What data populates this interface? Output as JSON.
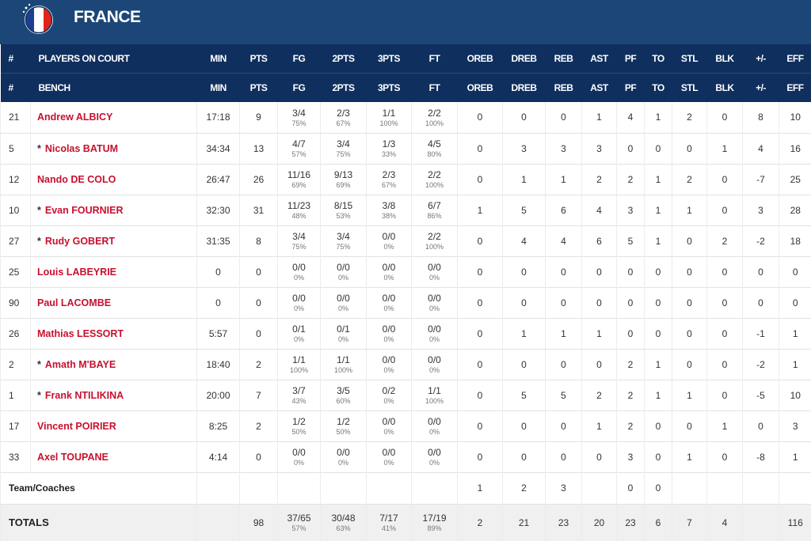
{
  "header": {
    "title": "FRANCE"
  },
  "table": {
    "columns_on_court": [
      "#",
      "PLAYERS ON COURT",
      "MIN",
      "PTS",
      "FG",
      "2PTS",
      "3PTS",
      "FT",
      "OREB",
      "DREB",
      "REB",
      "AST",
      "PF",
      "TO",
      "STL",
      "BLK",
      "+/-",
      "EFF"
    ],
    "columns_bench": [
      "#",
      "BENCH",
      "MIN",
      "PTS",
      "FG",
      "2PTS",
      "3PTS",
      "FT",
      "OREB",
      "DREB",
      "REB",
      "AST",
      "PF",
      "TO",
      "STL",
      "BLK",
      "+/-",
      "EFF"
    ],
    "rows": [
      {
        "number": "21",
        "name": "Andrew ALBICY",
        "stats": [
          "17:18",
          "9",
          [
            "3/4",
            "75%"
          ],
          [
            "2/3",
            "67%"
          ],
          [
            "1/1",
            "100%"
          ],
          [
            "2/2",
            "100%"
          ],
          "0",
          "0",
          "0",
          "1",
          "4",
          "1",
          "2",
          "0",
          "8",
          "10"
        ]
      },
      {
        "number": "5",
        "marker": "*",
        "name": "Nicolas BATUM",
        "stats": [
          "34:34",
          "13",
          [
            "4/7",
            "57%"
          ],
          [
            "3/4",
            "75%"
          ],
          [
            "1/3",
            "33%"
          ],
          [
            "4/5",
            "80%"
          ],
          "0",
          "3",
          "3",
          "3",
          "0",
          "0",
          "0",
          "1",
          "4",
          "16"
        ]
      },
      {
        "number": "12",
        "name": "Nando DE COLO",
        "stats": [
          "26:47",
          "26",
          [
            "11/16",
            "69%"
          ],
          [
            "9/13",
            "69%"
          ],
          [
            "2/3",
            "67%"
          ],
          [
            "2/2",
            "100%"
          ],
          "0",
          "1",
          "1",
          "2",
          "2",
          "1",
          "2",
          "0",
          "-7",
          "25"
        ]
      },
      {
        "number": "10",
        "marker": "*",
        "name": "Evan FOURNIER",
        "stats": [
          "32:30",
          "31",
          [
            "11/23",
            "48%"
          ],
          [
            "8/15",
            "53%"
          ],
          [
            "3/8",
            "38%"
          ],
          [
            "6/7",
            "86%"
          ],
          "1",
          "5",
          "6",
          "4",
          "3",
          "1",
          "1",
          "0",
          "3",
          "28"
        ]
      },
      {
        "number": "27",
        "marker": "*",
        "name": "Rudy GOBERT",
        "stats": [
          "31:35",
          "8",
          [
            "3/4",
            "75%"
          ],
          [
            "3/4",
            "75%"
          ],
          [
            "0/0",
            "0%"
          ],
          [
            "2/2",
            "100%"
          ],
          "0",
          "4",
          "4",
          "6",
          "5",
          "1",
          "0",
          "2",
          "-2",
          "18"
        ]
      },
      {
        "number": "25",
        "name": "Louis LABEYRIE",
        "stats": [
          "0",
          "0",
          [
            "0/0",
            "0%"
          ],
          [
            "0/0",
            "0%"
          ],
          [
            "0/0",
            "0%"
          ],
          [
            "0/0",
            "0%"
          ],
          "0",
          "0",
          "0",
          "0",
          "0",
          "0",
          "0",
          "0",
          "0",
          "0"
        ]
      },
      {
        "number": "90",
        "name": "Paul LACOMBE",
        "stats": [
          "0",
          "0",
          [
            "0/0",
            "0%"
          ],
          [
            "0/0",
            "0%"
          ],
          [
            "0/0",
            "0%"
          ],
          [
            "0/0",
            "0%"
          ],
          "0",
          "0",
          "0",
          "0",
          "0",
          "0",
          "0",
          "0",
          "0",
          "0"
        ]
      },
      {
        "number": "26",
        "name": "Mathias LESSORT",
        "stats": [
          "5:57",
          "0",
          [
            "0/1",
            "0%"
          ],
          [
            "0/1",
            "0%"
          ],
          [
            "0/0",
            "0%"
          ],
          [
            "0/0",
            "0%"
          ],
          "0",
          "1",
          "1",
          "1",
          "0",
          "0",
          "0",
          "0",
          "-1",
          "1"
        ]
      },
      {
        "number": "2",
        "marker": "*",
        "name": "Amath M'BAYE",
        "stats": [
          "18:40",
          "2",
          [
            "1/1",
            "100%"
          ],
          [
            "1/1",
            "100%"
          ],
          [
            "0/0",
            "0%"
          ],
          [
            "0/0",
            "0%"
          ],
          "0",
          "0",
          "0",
          "0",
          "2",
          "1",
          "0",
          "0",
          "-2",
          "1"
        ]
      },
      {
        "number": "1",
        "marker": "*",
        "name": "Frank NTILIKINA",
        "stats": [
          "20:00",
          "7",
          [
            "3/7",
            "43%"
          ],
          [
            "3/5",
            "60%"
          ],
          [
            "0/2",
            "0%"
          ],
          [
            "1/1",
            "100%"
          ],
          "0",
          "5",
          "5",
          "2",
          "2",
          "1",
          "1",
          "0",
          "-5",
          "10"
        ]
      },
      {
        "number": "17",
        "name": "Vincent POIRIER",
        "stats": [
          "8:25",
          "2",
          [
            "1/2",
            "50%"
          ],
          [
            "1/2",
            "50%"
          ],
          [
            "0/0",
            "0%"
          ],
          [
            "0/0",
            "0%"
          ],
          "0",
          "0",
          "0",
          "1",
          "2",
          "0",
          "0",
          "1",
          "0",
          "3"
        ]
      },
      {
        "number": "33",
        "name": "Axel TOUPANE",
        "stats": [
          "4:14",
          "0",
          [
            "0/0",
            "0%"
          ],
          [
            "0/0",
            "0%"
          ],
          [
            "0/0",
            "0%"
          ],
          [
            "0/0",
            "0%"
          ],
          "0",
          "0",
          "0",
          "0",
          "3",
          "0",
          "1",
          "0",
          "-8",
          "1"
        ]
      }
    ],
    "team": {
      "label": "Team/Coaches",
      "stats": [
        null,
        null,
        null,
        null,
        null,
        null,
        "1",
        "2",
        "3",
        null,
        "0",
        "0",
        null,
        null,
        null,
        null
      ]
    },
    "totals": {
      "label": "TOTALS",
      "stats": [
        null,
        "98",
        [
          "37/65",
          "57%"
        ],
        [
          "30/48",
          "63%"
        ],
        [
          "7/17",
          "41%"
        ],
        [
          "17/19",
          "89%"
        ],
        "2",
        "21",
        "23",
        "20",
        "23",
        "6",
        "7",
        "4",
        null,
        "116"
      ]
    }
  }
}
